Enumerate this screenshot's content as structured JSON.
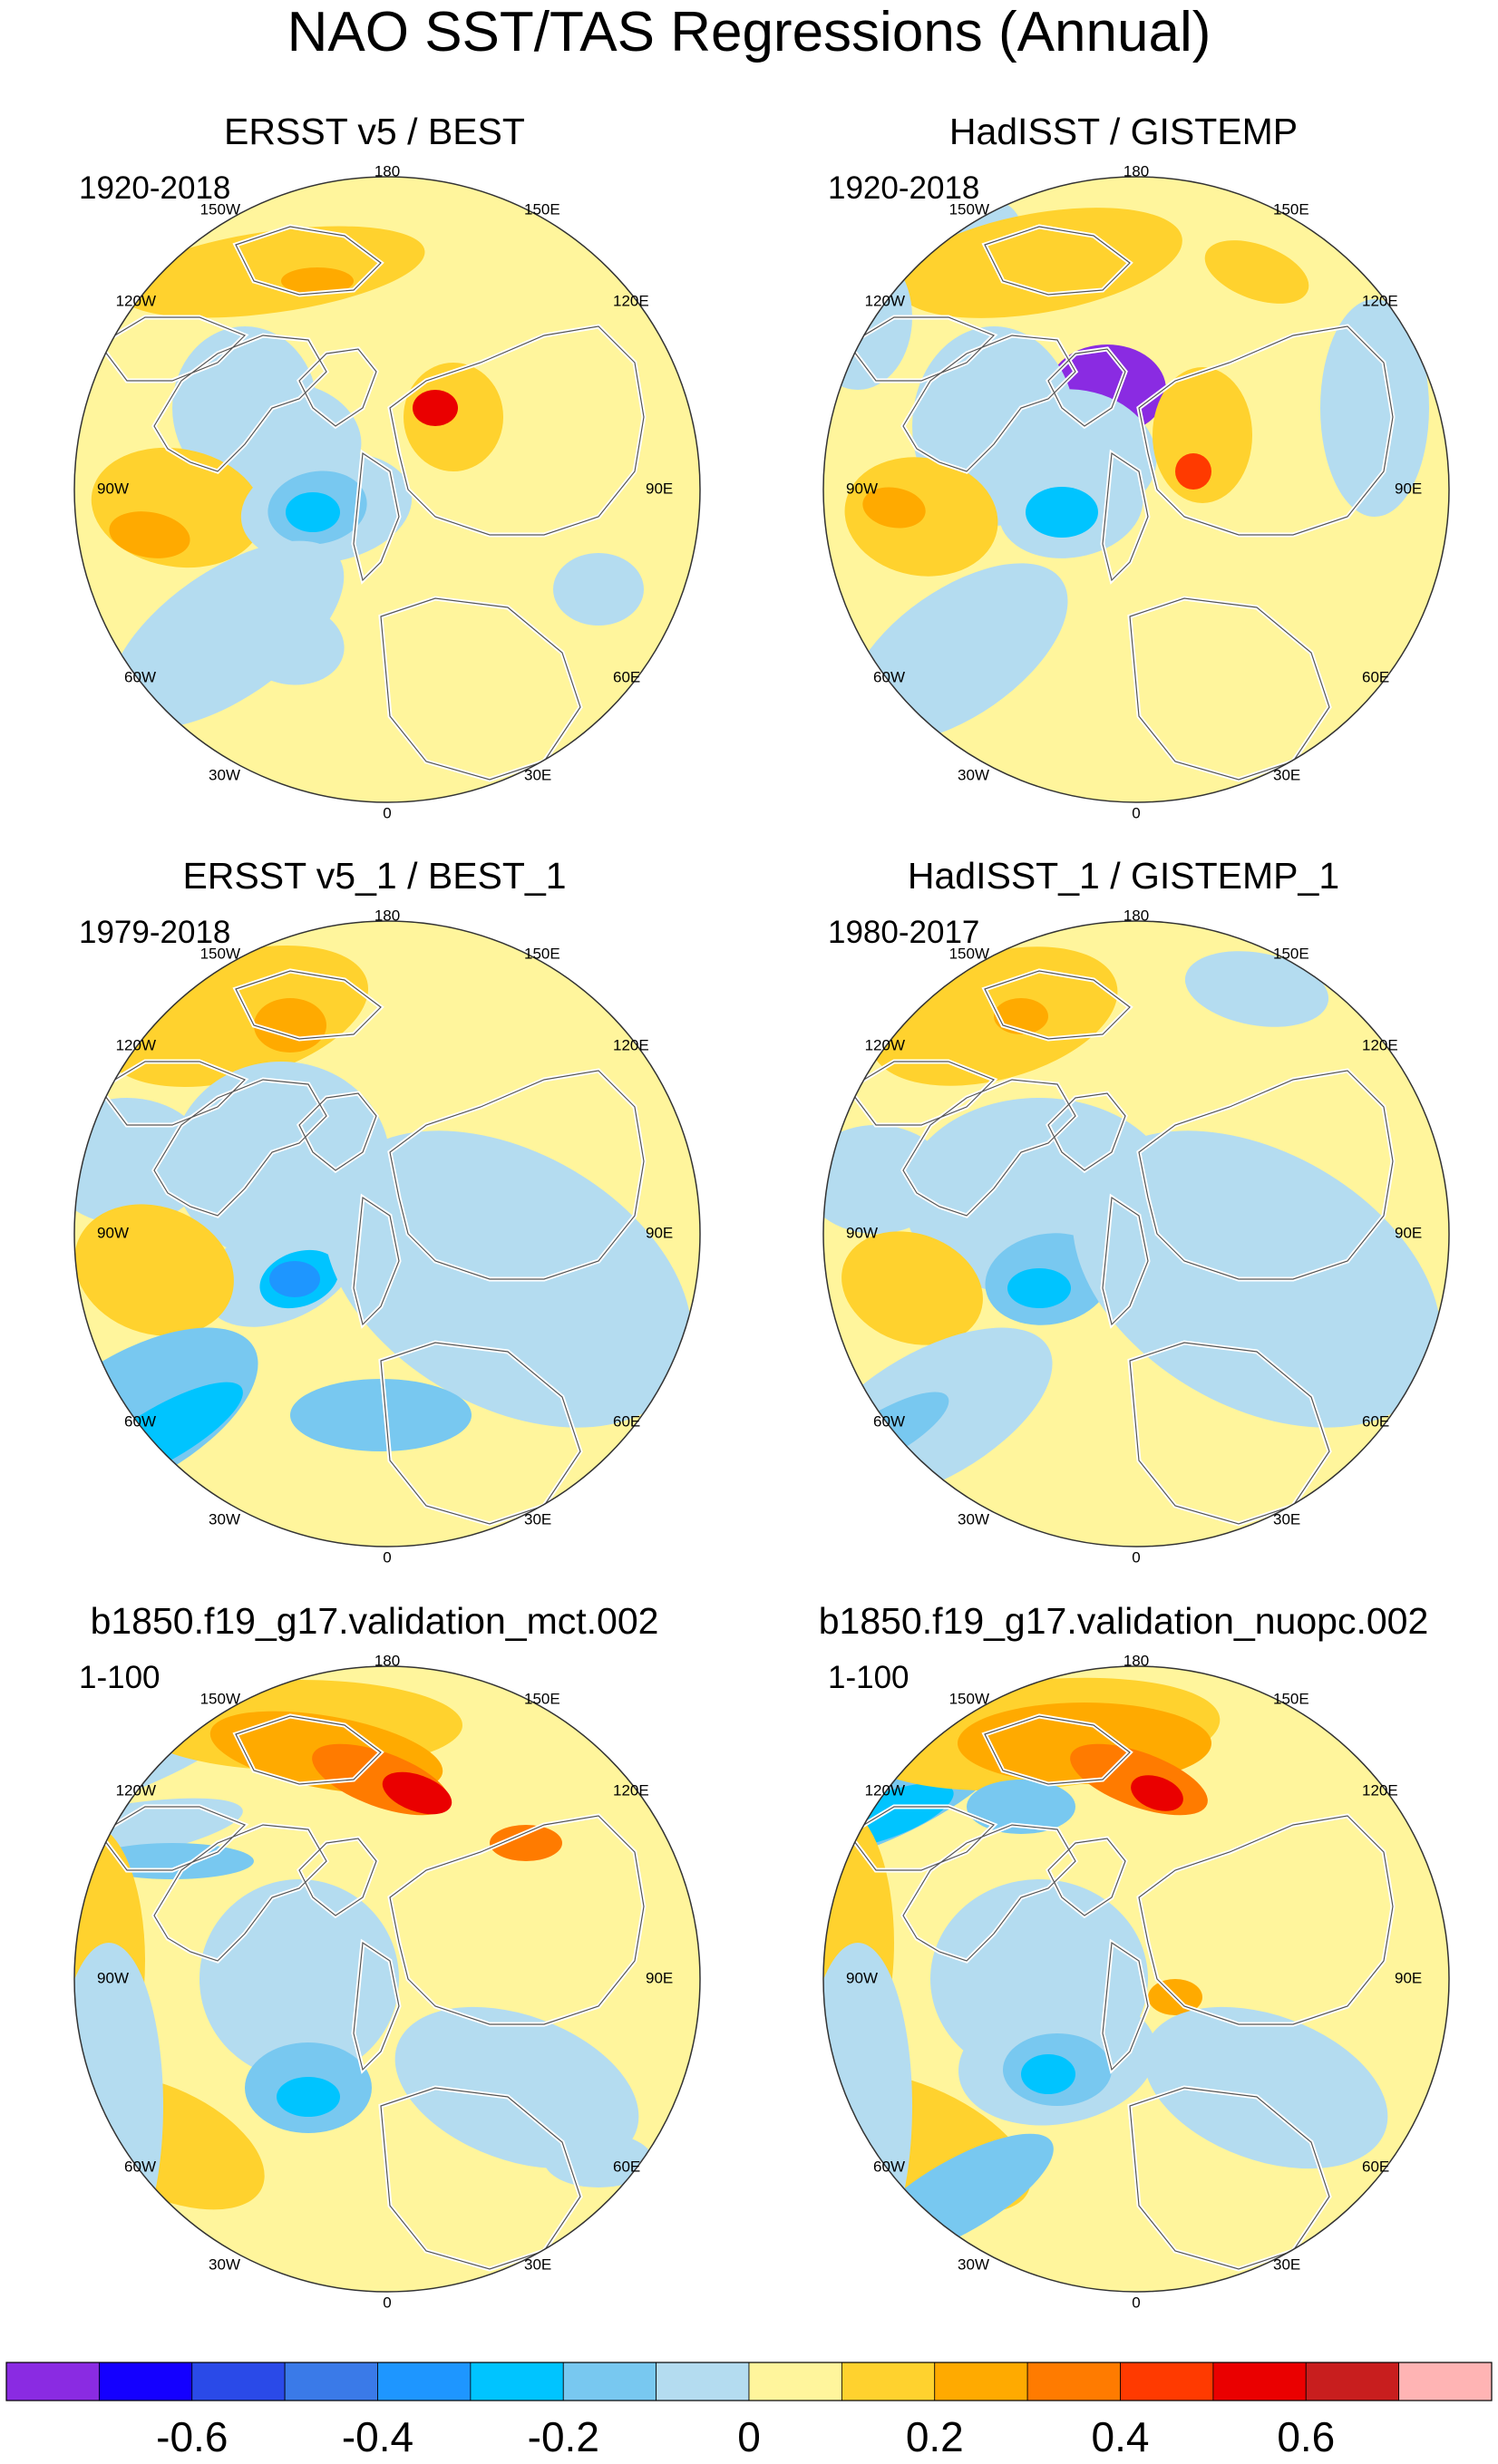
{
  "title": "NAO SST/TAS Regressions (Annual)",
  "longitude_labels": [
    "180",
    "150E",
    "120E",
    "90E",
    "60E",
    "30E",
    "0",
    "30W",
    "60W",
    "90W",
    "120W",
    "150W"
  ],
  "panels": [
    {
      "title": "ERSST v5 / BEST",
      "period": "1920-2018"
    },
    {
      "title": "HadISST / GISTEMP",
      "period": "1920-2018"
    },
    {
      "title": "ERSST v5_1 / BEST_1",
      "period": "1979-2018"
    },
    {
      "title": "HadISST_1 / GISTEMP_1",
      "period": "1980-2017"
    },
    {
      "title": "b1850.f19_g17.validation_mct.002",
      "period": "1-100"
    },
    {
      "title": "b1850.f19_g17.validation_nuopc.002",
      "period": "1-100"
    }
  ],
  "colorbar": {
    "colors": [
      "#8a2be2",
      "#1400ff",
      "#2a4ae8",
      "#3a7ae8",
      "#1e96ff",
      "#00c4ff",
      "#78c8f0",
      "#b4dcf0",
      "#fff59c",
      "#ffd22e",
      "#ffaa00",
      "#ff7b00",
      "#ff3a00",
      "#ea0000",
      "#c81e1e",
      "#ffb4b4"
    ],
    "labels": [
      "-0.6",
      "-0.4",
      "-0.2",
      "0",
      "0.2",
      "0.4",
      "0.6"
    ],
    "label_values": [
      -0.6,
      -0.4,
      -0.2,
      0,
      0.2,
      0.4,
      0.6
    ]
  }
}
